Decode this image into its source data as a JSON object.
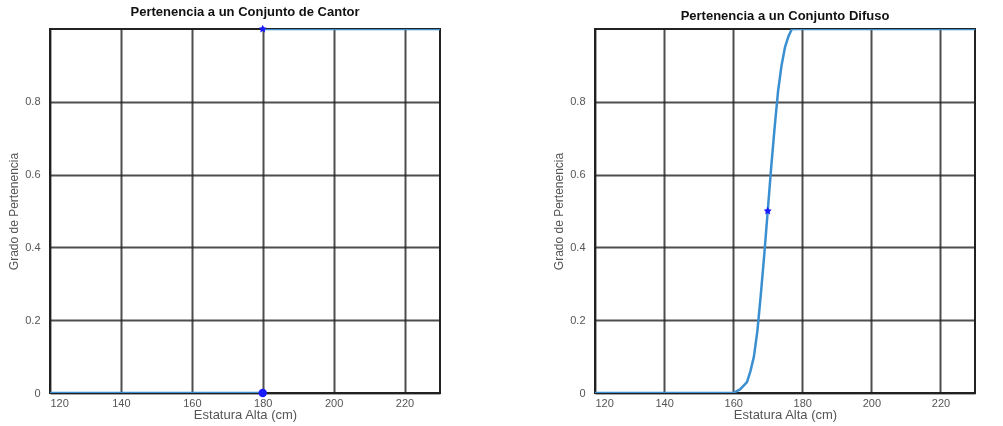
{
  "chart_data": [
    {
      "type": "line",
      "title": "Pertenencia a un Conjunto de Cantor",
      "xlabel": "Estatura Alta (cm)",
      "ylabel": "Grado de Pertenencia",
      "xlim": [
        120,
        230
      ],
      "ylim": [
        0,
        1
      ],
      "xticks": [
        120,
        140,
        160,
        180,
        200,
        220
      ],
      "yticks": [
        0,
        0.2,
        0.4,
        0.6,
        0.8
      ],
      "grid": true,
      "series": [
        {
          "color": "#3a8fd0",
          "x": [
            120,
            180
          ],
          "values": [
            0,
            0
          ]
        },
        {
          "color": "#3a8fd0",
          "x": [
            180,
            230
          ],
          "values": [
            1,
            1
          ]
        },
        {
          "type": "scatter",
          "color": "#1a1aff",
          "marker": "circle",
          "x": [
            180
          ],
          "values": [
            0
          ]
        },
        {
          "type": "scatter",
          "color": "#1a1aff",
          "marker": "star",
          "x": [
            180
          ],
          "values": [
            1
          ]
        }
      ]
    },
    {
      "type": "line",
      "title": "Pertenencia a un Conjunto Difuso",
      "xlabel": "Estatura Alta (cm)",
      "ylabel": "Grado de Pertenencia",
      "xlim": [
        120,
        230
      ],
      "ylim": [
        0,
        1
      ],
      "xticks": [
        120,
        140,
        160,
        180,
        200,
        220
      ],
      "yticks": [
        0,
        0.2,
        0.4,
        0.6,
        0.8
      ],
      "grid": true,
      "series": [
        {
          "color": "#3a8fd0",
          "x": [
            120,
            160,
            162,
            164,
            165,
            166,
            167,
            168,
            169,
            170,
            171,
            172,
            173,
            174,
            175,
            176,
            177,
            230
          ],
          "values": [
            0,
            0,
            0.01,
            0.03,
            0.06,
            0.1,
            0.17,
            0.27,
            0.38,
            0.5,
            0.62,
            0.73,
            0.83,
            0.9,
            0.95,
            0.98,
            1,
            1
          ]
        },
        {
          "type": "scatter",
          "color": "#1a1aff",
          "marker": "star",
          "x": [
            170
          ],
          "values": [
            0.5
          ]
        }
      ]
    }
  ]
}
